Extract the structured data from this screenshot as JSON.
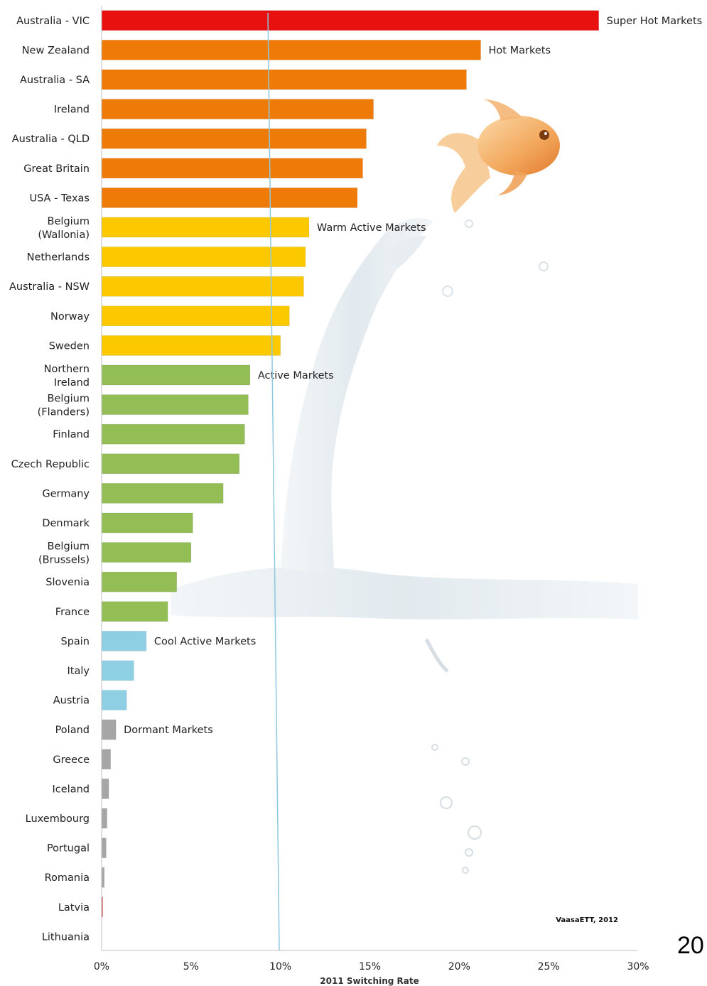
{
  "chart_data": {
    "type": "bar",
    "orientation": "horizontal",
    "title": "",
    "xlabel": "2011 Switching Rate",
    "ylabel": "",
    "xlim": [
      0,
      30
    ],
    "x_ticks": [
      "0%",
      "5%",
      "10%",
      "15%",
      "20%",
      "25%",
      "30%"
    ],
    "grid": false,
    "reference_line": {
      "value": 9.3,
      "label": ""
    },
    "categories": [
      "Australia - VIC",
      "New Zealand",
      "Australia - SA",
      "Ireland",
      "Australia - QLD",
      "Great Britain",
      "USA - Texas",
      "Belgium\n(Wallonia)",
      "Netherlands",
      "Australia - NSW",
      "Norway",
      "Sweden",
      "Northern\nIreland",
      "Belgium\n(Flanders)",
      "Finland",
      "Czech Republic",
      "Germany",
      "Denmark",
      "Belgium\n(Brussels)",
      "Slovenia",
      "France",
      "Spain",
      "Italy",
      "Austria",
      "Poland",
      "Greece",
      "Iceland",
      "Luxembourg",
      "Portugal",
      "Romania",
      "Latvia",
      "Lithuania"
    ],
    "values": [
      27.8,
      21.2,
      20.4,
      15.2,
      14.8,
      14.6,
      14.3,
      11.6,
      11.4,
      11.3,
      10.5,
      10.0,
      8.3,
      8.2,
      8.0,
      7.7,
      6.8,
      5.1,
      5.0,
      4.2,
      3.7,
      2.5,
      1.8,
      1.4,
      0.8,
      0.5,
      0.4,
      0.3,
      0.25,
      0.15,
      0.05,
      0.0
    ],
    "groups": [
      0,
      1,
      1,
      1,
      1,
      1,
      1,
      2,
      2,
      2,
      2,
      2,
      3,
      3,
      3,
      3,
      3,
      3,
      3,
      3,
      3,
      4,
      4,
      4,
      5,
      5,
      5,
      5,
      5,
      5,
      6,
      5
    ],
    "group_colors": [
      "#e8110f",
      "#ee7a08",
      "#fcc900",
      "#93bd55",
      "#8fcfe3",
      "#a6a6a6",
      "#d6413a"
    ],
    "annotations": [
      {
        "text": "Super Hot Markets",
        "category_index": 0
      },
      {
        "text": "Hot Markets",
        "category_index": 1
      },
      {
        "text": "Warm Active Markets",
        "category_index": 7
      },
      {
        "text": "Active Markets",
        "category_index": 12
      },
      {
        "text": "Cool Active Markets",
        "category_index": 21
      },
      {
        "text": "Dormant Markets",
        "category_index": 24
      }
    ],
    "source_note": "VaasaETT, 2012"
  },
  "page": {
    "number": "20"
  }
}
